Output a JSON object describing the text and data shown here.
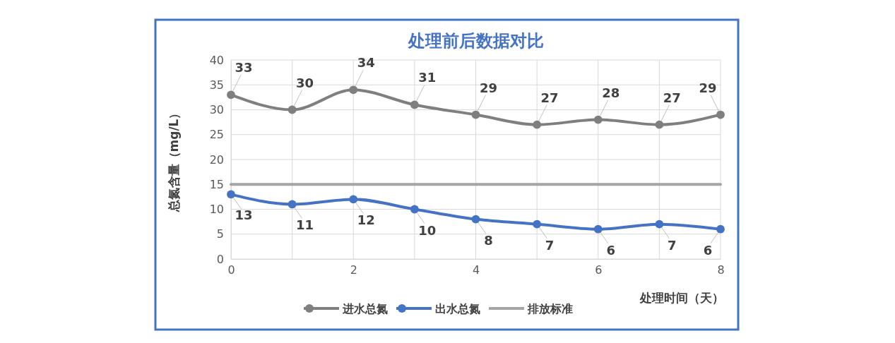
{
  "chart_data": {
    "type": "line",
    "title": "处理前后数据对比",
    "xlabel": "处理时间（天）",
    "ylabel": "总氮含量（mg/L）",
    "x": [
      0,
      1,
      2,
      3,
      4,
      5,
      6,
      7,
      8
    ],
    "xlim": [
      0,
      8
    ],
    "xticks": [
      0,
      2,
      4,
      6,
      8
    ],
    "ylim": [
      0,
      40
    ],
    "yticks": [
      0,
      5,
      10,
      15,
      20,
      25,
      30,
      35,
      40
    ],
    "grid": true,
    "legend": "bottom",
    "line_style": "solid",
    "series": [
      {
        "name": "进水总氮",
        "color": "#7f7f7f",
        "marker": "circle",
        "values": [
          33,
          30,
          34,
          31,
          29,
          27,
          28,
          27,
          29
        ],
        "value_labels": [
          "33",
          "30",
          "34",
          "31",
          "29",
          "27",
          "28",
          "27",
          "29"
        ]
      },
      {
        "name": "出水总氮",
        "color": "#4472c4",
        "marker": "circle",
        "values": [
          13,
          11,
          12,
          10,
          8,
          7,
          6,
          7,
          6
        ],
        "value_labels": [
          "13",
          "11",
          "12",
          "10",
          "8",
          "7",
          "6",
          "7",
          "6"
        ]
      },
      {
        "name": "排放标准",
        "color": "#a5a5a5",
        "marker": "none",
        "values": [
          15,
          15,
          15,
          15,
          15,
          15,
          15,
          15,
          15
        ]
      }
    ]
  }
}
